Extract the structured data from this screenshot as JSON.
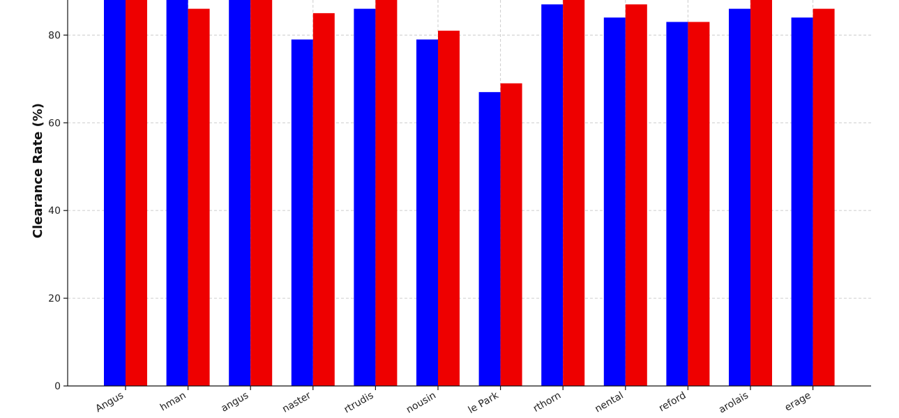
{
  "chart_data": {
    "type": "bar",
    "title": "",
    "xlabel": "",
    "ylabel": "Clearance Rate (%)",
    "ylim": [
      0,
      88
    ],
    "yticks": [
      "0",
      "20",
      "40",
      "60",
      "80"
    ],
    "ytick_values": [
      0,
      20,
      40,
      60,
      80
    ],
    "grid": true,
    "categories": [
      "Angus",
      "hman",
      "angus",
      "naster",
      "rtrudis",
      "nousin",
      "le Park",
      "rthorn",
      "nental",
      "reford",
      "arolais",
      "erage"
    ],
    "series": [
      {
        "values": [
          92,
          92,
          92,
          79,
          86,
          79,
          67,
          87,
          84,
          83,
          86,
          84
        ],
        "color": "#0000ff"
      },
      {
        "values": [
          92,
          86,
          92,
          85,
          92,
          81,
          69,
          92,
          87,
          83,
          92,
          86
        ],
        "color": "#ee0000"
      }
    ]
  }
}
